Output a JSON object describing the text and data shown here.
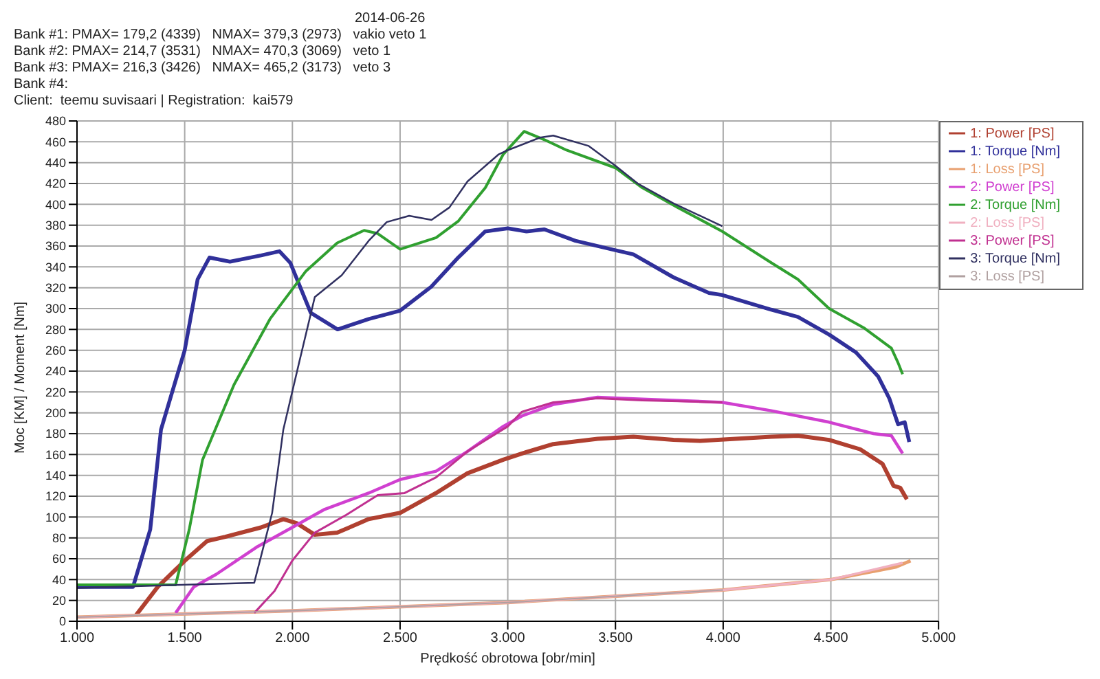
{
  "chart_data": {
    "type": "line",
    "xlabel": "Prędkość obrotowa [obr/min]",
    "ylabel": "Moc [KM] / Moment [Nm]",
    "annotations": [
      "2014-06-26",
      "Bank #1: PMAX= 179,2 (4339)   NMAX= 379,3 (2973)   vakio veto 1",
      "Bank #2: PMAX= 214,7 (3531)   NMAX= 470,3 (3069)   veto 1",
      "Bank #3: PMAX= 216,3 (3426)   NMAX= 465,2 (3173)   veto 3",
      "Bank #4:",
      "Client:  teemu suvisaari | Registration:  kai579"
    ],
    "xlim": [
      1000,
      5000
    ],
    "xticks": [
      {
        "value": 1000,
        "label": "1.000"
      },
      {
        "value": 1500,
        "label": "1.500"
      },
      {
        "value": 2000,
        "label": "2.000"
      },
      {
        "value": 2500,
        "label": "2.500"
      },
      {
        "value": 3000,
        "label": "3.000"
      },
      {
        "value": 3500,
        "label": "3.500"
      },
      {
        "value": 4000,
        "label": "4.000"
      },
      {
        "value": 4500,
        "label": "4.500"
      },
      {
        "value": 5000,
        "label": "5.000"
      }
    ],
    "ylim": [
      0,
      480
    ],
    "yticks": [
      0,
      20,
      40,
      60,
      80,
      100,
      120,
      140,
      160,
      180,
      200,
      220,
      240,
      260,
      280,
      300,
      320,
      340,
      360,
      380,
      400,
      420,
      440,
      460,
      480
    ],
    "grid": true,
    "legend": "top right",
    "marker": "none",
    "line_style": "solid",
    "series": [
      {
        "name": "1: Power [PS]",
        "color": "#b04030",
        "x": [
          1271,
          1375,
          1500,
          1604,
          1688,
          1854,
          1958,
          2021,
          2104,
          2208,
          2354,
          2500,
          2667,
          2813,
          2979,
          3066,
          3211,
          3417,
          3583,
          3769,
          3893,
          4058,
          4223,
          4347,
          4492,
          4636,
          4740,
          4791,
          4822,
          4853
        ],
        "values": [
          5,
          33,
          58,
          77,
          81,
          90,
          98,
          94,
          83,
          85,
          98,
          104,
          123,
          142,
          155,
          161,
          170,
          175,
          177,
          174,
          173,
          175,
          177,
          178,
          174,
          165,
          151,
          130,
          128,
          117
        ]
      },
      {
        "name": "1: Torque [Nm]",
        "color": "#30309a",
        "x": [
          1000,
          1260,
          1340,
          1390,
          1500,
          1560,
          1615,
          1710,
          1855,
          1940,
          1990,
          2085,
          2210,
          2355,
          2500,
          2645,
          2770,
          2895,
          3000,
          3087,
          3170,
          3314,
          3500,
          3583,
          3769,
          3934,
          3996,
          4223,
          4347,
          4492,
          4616,
          4719,
          4771,
          4812,
          4843,
          4864
        ],
        "values": [
          33,
          33,
          88,
          184,
          260,
          328,
          349,
          345,
          351,
          355,
          344,
          296,
          280,
          290,
          298,
          321,
          349,
          374,
          377,
          374,
          376,
          365,
          356,
          352,
          330,
          315,
          313,
          299,
          292,
          275,
          258,
          235,
          214,
          189,
          191,
          172
        ]
      },
      {
        "name": "1: Loss [PS]",
        "color": "#e8a070",
        "x": [
          1000,
          2000,
          3000,
          4000,
          4500,
          4800,
          4870
        ],
        "values": [
          4,
          10,
          18,
          30,
          40,
          52,
          58
        ]
      },
      {
        "name": "2: Power [PS]",
        "color": "#d040d0",
        "x": [
          1458,
          1542,
          1646,
          1833,
          1999,
          2146,
          2354,
          2500,
          2667,
          2813,
          2979,
          3066,
          3211,
          3417,
          3521,
          3769,
          3996,
          4223,
          4492,
          4698,
          4781,
          4833
        ],
        "values": [
          8,
          33,
          45,
          71,
          90,
          107,
          123,
          136,
          144,
          163,
          187,
          197,
          208,
          215,
          214,
          212,
          210,
          202,
          191,
          180,
          178,
          161
        ]
      },
      {
        "name": "2: Torque [Nm]",
        "color": "#30a030",
        "x": [
          1000,
          1458,
          1521,
          1583,
          1729,
          1896,
          2063,
          2208,
          2333,
          2396,
          2500,
          2667,
          2771,
          2896,
          2979,
          3076,
          3170,
          3273,
          3500,
          3624,
          3789,
          3996,
          4223,
          4347,
          4492,
          4657,
          4781,
          4812,
          4833
        ],
        "values": [
          35,
          35,
          88,
          155,
          227,
          290,
          336,
          363,
          375,
          372,
          357,
          368,
          384,
          416,
          448,
          470,
          462,
          452,
          435,
          416,
          397,
          374,
          344,
          328,
          300,
          281,
          262,
          248,
          237
        ]
      },
      {
        "name": "2: Loss [PS]",
        "color": "#f0b0c0",
        "x": [
          1000,
          2000,
          3000,
          4000,
          4500,
          4833
        ],
        "values": [
          4,
          10,
          18,
          30,
          40,
          56
        ]
      },
      {
        "name": "3: Power [PS]",
        "color": "#c03090",
        "x": [
          1823,
          1917,
          1999,
          2104,
          2250,
          2396,
          2521,
          2667,
          2813,
          3000,
          3066,
          3211,
          3417,
          3624,
          3831,
          3996
        ],
        "values": [
          8,
          29,
          58,
          85,
          102,
          121,
          123,
          138,
          163,
          187,
          201,
          210,
          214,
          212,
          211,
          210
        ]
      },
      {
        "name": "3: Torque [Nm]",
        "color": "#303060",
        "x": [
          1000,
          1823,
          1906,
          1958,
          2031,
          2104,
          2229,
          2354,
          2438,
          2542,
          2646,
          2729,
          2813,
          2958,
          3000,
          3149,
          3211,
          3376,
          3500,
          3603,
          3769,
          3996
        ],
        "values": [
          32,
          37,
          104,
          184,
          248,
          311,
          332,
          365,
          383,
          389,
          385,
          397,
          422,
          448,
          452,
          464,
          466,
          456,
          437,
          420,
          401,
          379
        ]
      },
      {
        "name": "3: Loss [PS]",
        "color": "#b0a0a0",
        "x": [
          1000,
          2000,
          3000,
          4000
        ],
        "values": [
          4,
          10,
          18,
          30
        ]
      }
    ]
  }
}
